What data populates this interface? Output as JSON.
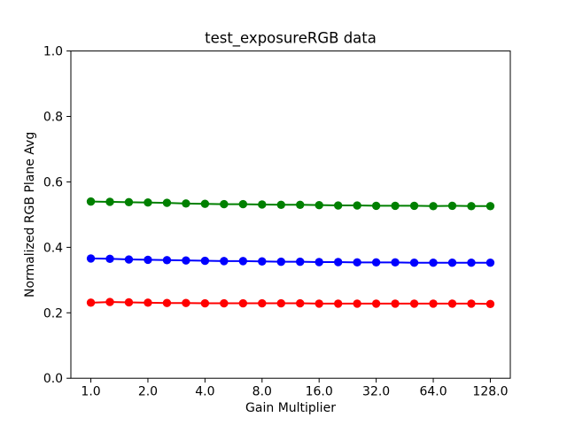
{
  "figure": {
    "background": "#ffffff",
    "title": "test_exposureRGB data"
  },
  "chart_data": {
    "type": "line",
    "title": "test_exposureRGB data",
    "xlabel": "Gain Multiplier",
    "ylabel": "Normalized RGB Plane Avg",
    "xscale": "log2",
    "xlim_log2": [
      -0.35,
      7.35
    ],
    "ylim": [
      0.0,
      1.0
    ],
    "grid": false,
    "legend": "none",
    "axis_color": "#000000",
    "xticks": {
      "values": [
        1.0,
        2.0,
        4.0,
        8.0,
        16.0,
        32.0,
        64.0,
        128.0
      ],
      "labels": [
        "1.0",
        "2.0",
        "4.0",
        "8.0",
        "16.0",
        "32.0",
        "64.0",
        "128.0"
      ]
    },
    "yticks": {
      "values": [
        0.0,
        0.2,
        0.4,
        0.6,
        0.8,
        1.0
      ],
      "labels": [
        "0.0",
        "0.2",
        "0.4",
        "0.6",
        "0.8",
        "1.0"
      ]
    },
    "x": [
      1.0,
      1.26,
      1.587,
      2.0,
      2.52,
      3.175,
      4.0,
      5.04,
      6.35,
      8.0,
      10.079,
      12.699,
      16.0,
      20.159,
      25.398,
      32.0,
      40.317,
      50.797,
      64.0,
      80.635,
      101.594,
      128.0
    ],
    "series": [
      {
        "name": "green",
        "color": "#008000",
        "marker": "o",
        "values": [
          0.54,
          0.539,
          0.538,
          0.537,
          0.536,
          0.534,
          0.533,
          0.532,
          0.532,
          0.531,
          0.53,
          0.53,
          0.529,
          0.528,
          0.528,
          0.527,
          0.527,
          0.527,
          0.526,
          0.527,
          0.526,
          0.526
        ]
      },
      {
        "name": "blue",
        "color": "#0000ff",
        "marker": "o",
        "values": [
          0.366,
          0.365,
          0.363,
          0.362,
          0.361,
          0.36,
          0.359,
          0.358,
          0.358,
          0.357,
          0.356,
          0.356,
          0.355,
          0.355,
          0.354,
          0.354,
          0.354,
          0.353,
          0.353,
          0.353,
          0.353,
          0.353
        ]
      },
      {
        "name": "red",
        "color": "#ff0000",
        "marker": "o",
        "values": [
          0.231,
          0.233,
          0.232,
          0.231,
          0.23,
          0.23,
          0.229,
          0.229,
          0.229,
          0.229,
          0.229,
          0.229,
          0.228,
          0.228,
          0.228,
          0.228,
          0.228,
          0.228,
          0.228,
          0.228,
          0.228,
          0.227
        ]
      }
    ]
  }
}
